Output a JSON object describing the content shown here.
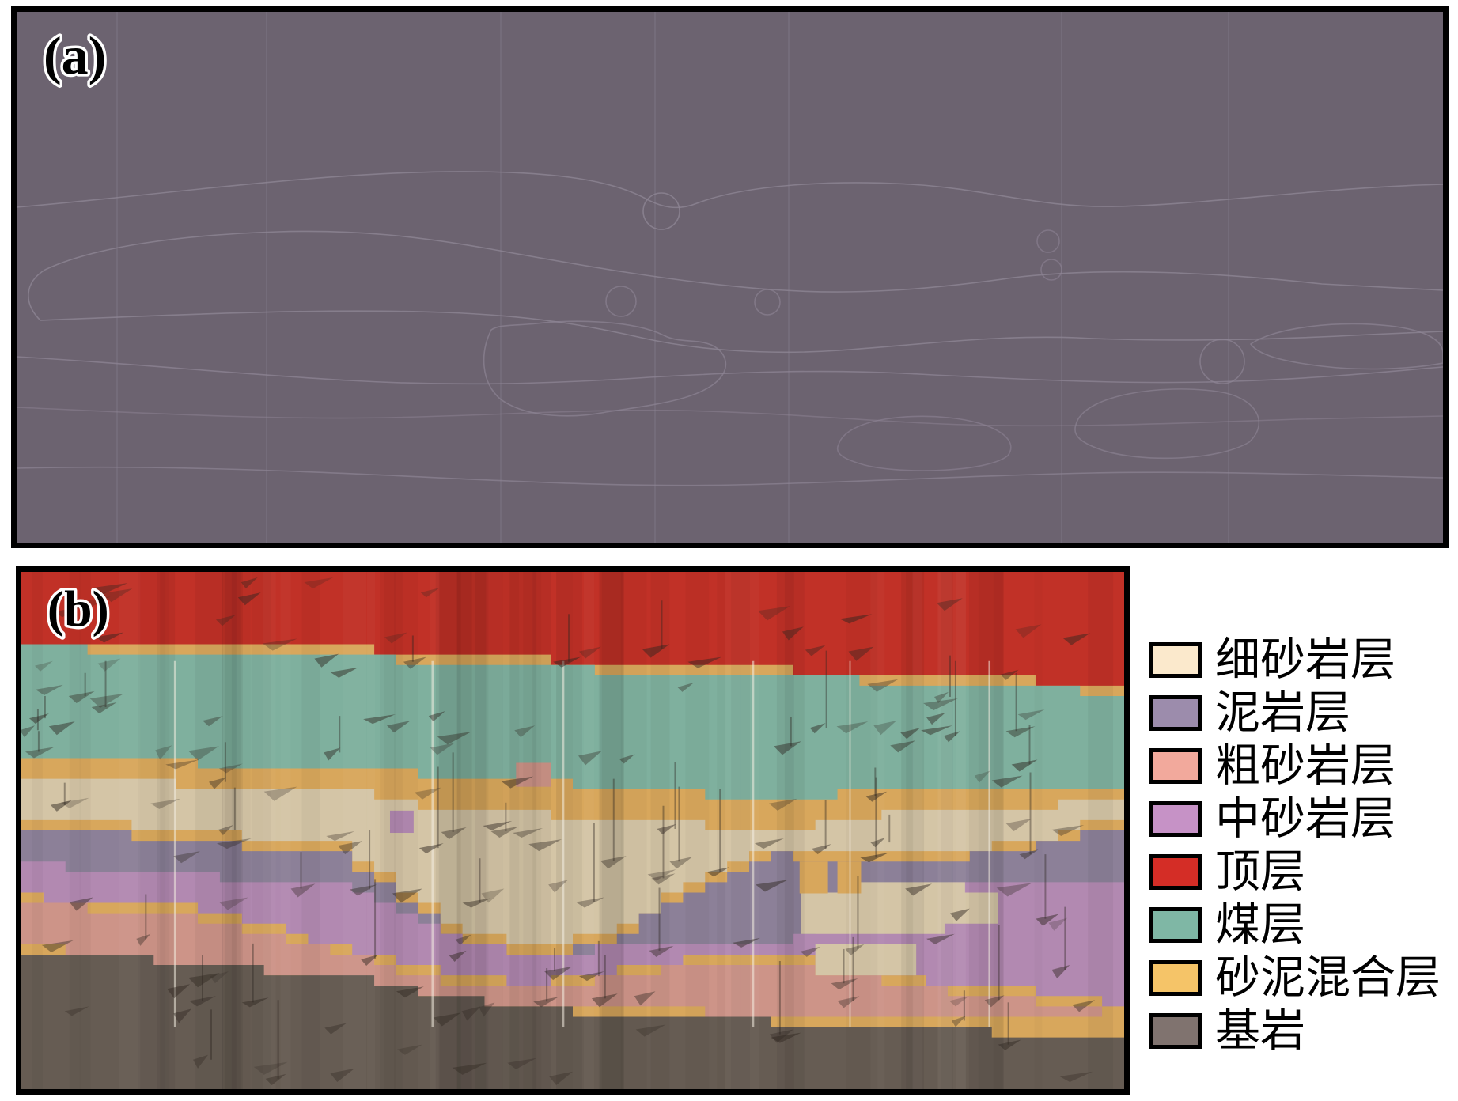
{
  "figure_labels": {
    "panel_a": "(a)",
    "panel_b": "(b)"
  },
  "survey": {
    "background": "#6C6370",
    "line_color": "#8D8494"
  },
  "section": {
    "layer_fills": {
      "top": "#C13127",
      "coal": "#7FB09E",
      "sand_mud_mix": "#D8A75C",
      "fine_sandstone": "#D4C5A6",
      "mudstone": "#8C8098",
      "medium_sandstone": "#B289B1",
      "coarse_sandstone": "#CD9488",
      "bedrock": "#665C53"
    },
    "well_line_color": "#F4EFE2",
    "shadow_color": "#2E2620"
  },
  "legend": {
    "items": [
      {
        "id": "fine_sandstone",
        "label": "细砂岩层",
        "color": "#FBE9CC"
      },
      {
        "id": "mudstone",
        "label": "泥岩层",
        "color": "#9C8CAC"
      },
      {
        "id": "coarse_sandstone",
        "label": "粗砂岩层",
        "color": "#F2A99C"
      },
      {
        "id": "medium_sandstone",
        "label": "中砂岩层",
        "color": "#C692C6"
      },
      {
        "id": "top",
        "label": "顶层",
        "color": "#D42D26"
      },
      {
        "id": "coal",
        "label": "煤层",
        "color": "#7FB7A5"
      },
      {
        "id": "sand_mud_mix",
        "label": "砂泥混合层",
        "color": "#F5C468"
      },
      {
        "id": "bedrock",
        "label": "基岩",
        "color": "#80736F"
      }
    ]
  }
}
